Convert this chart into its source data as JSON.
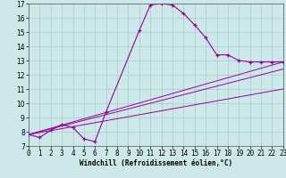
{
  "xlabel": "Windchill (Refroidissement éolien,°C)",
  "bg_color": "#cce8e8",
  "grid_color": "#aacccc",
  "line_color": "#990099",
  "xmin": 0,
  "xmax": 23,
  "ymin": 7,
  "ymax": 17,
  "curve1_x": [
    0,
    1,
    2,
    3,
    4,
    5,
    6,
    7,
    10,
    11,
    12,
    13,
    14,
    15,
    16,
    17,
    18,
    19,
    20,
    21,
    22,
    23
  ],
  "curve1_y": [
    7.8,
    7.6,
    8.1,
    8.5,
    8.3,
    7.5,
    7.3,
    9.4,
    15.1,
    16.9,
    17.0,
    16.9,
    16.3,
    15.5,
    14.6,
    13.4,
    13.4,
    13.0,
    12.9,
    12.9,
    12.9,
    12.9
  ],
  "curve2_x": [
    0,
    23
  ],
  "curve2_y": [
    7.8,
    12.9
  ],
  "curve3_x": [
    0,
    23
  ],
  "curve3_y": [
    7.8,
    12.4
  ],
  "curve4_x": [
    0,
    23
  ],
  "curve4_y": [
    7.8,
    11.0
  ],
  "xticks": [
    0,
    1,
    2,
    3,
    4,
    5,
    6,
    7,
    8,
    9,
    10,
    11,
    12,
    13,
    14,
    15,
    16,
    17,
    18,
    19,
    20,
    21,
    22,
    23
  ],
  "yticks": [
    7,
    8,
    9,
    10,
    11,
    12,
    13,
    14,
    15,
    16,
    17
  ],
  "xlabel_fontsize": 5.5,
  "tick_fontsize": 5.5
}
